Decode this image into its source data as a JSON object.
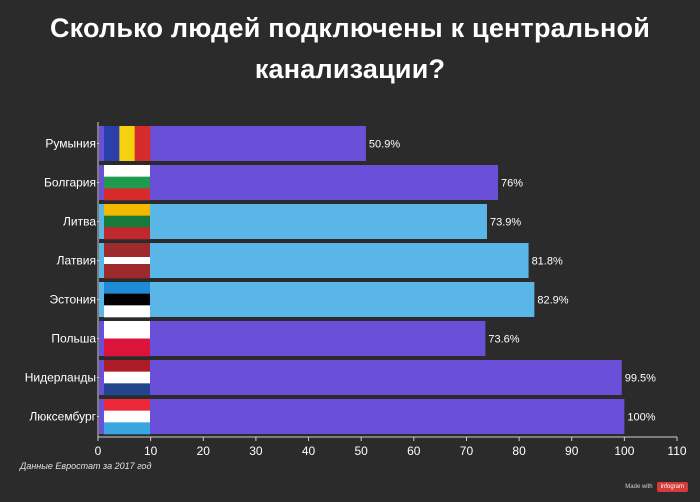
{
  "title": {
    "line1": "Сколько людей подключены к центральной",
    "line2": "канализации?"
  },
  "source_note": "Данные Евростат за 2017 год",
  "badge": {
    "made_with": "Made with",
    "brand": "infogram"
  },
  "colors": {
    "background": "#2b2b2b",
    "bar_purple": "#6a4fd8",
    "bar_blue": "#5ab6e6",
    "axis": "#cfcfcf",
    "grid": "#4a4a4a"
  },
  "chart_data": {
    "type": "bar",
    "orientation": "horizontal",
    "title": "Сколько людей подключены к центральной канализации?",
    "xlabel": "",
    "ylabel": "",
    "xlim": [
      0,
      110
    ],
    "xticks": [
      0,
      10,
      20,
      30,
      40,
      50,
      60,
      70,
      80,
      90,
      100,
      110
    ],
    "grid": false,
    "categories": [
      "Румыния",
      "Болгария",
      "Литва",
      "Латвия",
      "Эстония",
      "Польша",
      "Нидерланды",
      "Люксембург"
    ],
    "values": [
      50.9,
      76,
      73.9,
      81.8,
      82.9,
      73.6,
      99.5,
      100
    ],
    "value_labels": [
      "50.9%",
      "76%",
      "73.9%",
      "81.8%",
      "82.9%",
      "73.6%",
      "99.5%",
      "100%"
    ],
    "bar_colors": [
      "#6a4fd8",
      "#6a4fd8",
      "#5ab6e6",
      "#5ab6e6",
      "#5ab6e6",
      "#6a4fd8",
      "#6a4fd8",
      "#6a4fd8"
    ],
    "flags": [
      {
        "icon": "romania-flag-icon",
        "orientation": "vertical",
        "colors": [
          "#2a3fa8",
          "#f6d10e",
          "#d62b2b"
        ]
      },
      {
        "icon": "bulgaria-flag-icon",
        "orientation": "horizontal",
        "colors": [
          "#ffffff",
          "#1f9a4e",
          "#d62b2b"
        ]
      },
      {
        "icon": "lithuania-flag-icon",
        "orientation": "horizontal",
        "colors": [
          "#f5b800",
          "#1a7a3a",
          "#c1272d"
        ]
      },
      {
        "icon": "latvia-flag-icon",
        "orientation": "horizontal",
        "colors": [
          "#9e2a2b",
          "#ffffff",
          "#9e2a2b"
        ],
        "weights": [
          2,
          1,
          2
        ]
      },
      {
        "icon": "estonia-flag-icon",
        "orientation": "horizontal",
        "colors": [
          "#1f8ad6",
          "#000000",
          "#ffffff"
        ]
      },
      {
        "icon": "poland-flag-icon",
        "orientation": "horizontal",
        "colors": [
          "#ffffff",
          "#dc143c"
        ]
      },
      {
        "icon": "netherlands-flag-icon",
        "orientation": "horizontal",
        "colors": [
          "#ae1c28",
          "#ffffff",
          "#21468b"
        ]
      },
      {
        "icon": "luxembourg-flag-icon",
        "orientation": "horizontal",
        "colors": [
          "#ed2939",
          "#ffffff",
          "#3aa6e0"
        ]
      }
    ]
  }
}
